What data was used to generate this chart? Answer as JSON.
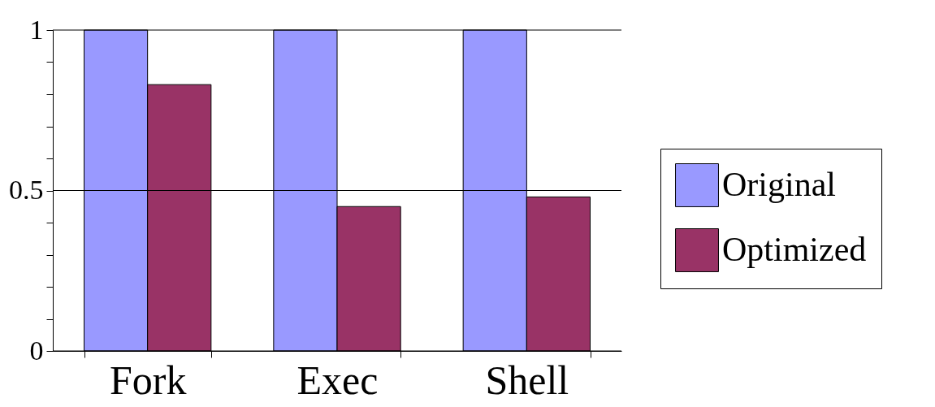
{
  "chart_data": {
    "type": "bar",
    "categories": [
      "Fork",
      "Exec",
      "Shell"
    ],
    "series": [
      {
        "name": "Original",
        "color": "#9999ff",
        "values": [
          1,
          1,
          1
        ]
      },
      {
        "name": "Optimized",
        "color": "#993366",
        "values": [
          0.83,
          0.45,
          0.48
        ]
      }
    ],
    "ylim": [
      0,
      1
    ],
    "yticks": [
      0,
      {
        "value": 0.1,
        "label": null
      },
      {
        "value": 0.2,
        "label": null
      },
      {
        "value": 0.3,
        "label": null
      },
      {
        "value": 0.4,
        "label": null
      },
      0.5,
      {
        "value": 0.6,
        "label": null
      },
      {
        "value": 0.7,
        "label": null
      },
      {
        "value": 0.8,
        "label": null
      },
      {
        "value": 0.9,
        "label": null
      },
      1
    ],
    "grid": "y",
    "legend": "right"
  }
}
